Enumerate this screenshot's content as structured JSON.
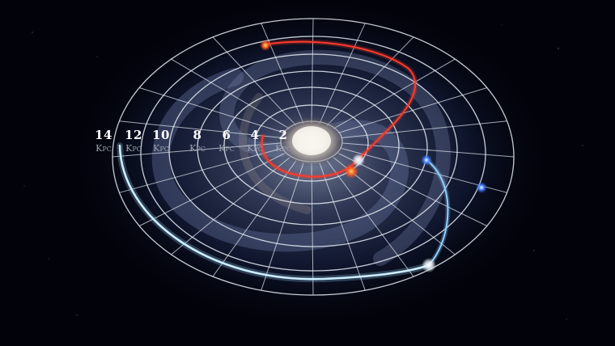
{
  "scale_labels": [
    {
      "value": "14",
      "unit": "Kpc"
    },
    {
      "value": "12",
      "unit": "Kpc"
    },
    {
      "value": "10",
      "unit": "Kpc"
    },
    {
      "value": "8",
      "unit": "Kpc"
    },
    {
      "value": "6",
      "unit": "Kpc"
    },
    {
      "value": "4",
      "unit": "Kpc"
    },
    {
      "value": "2",
      "unit": "Kpc"
    }
  ],
  "colors": {
    "grid": "#e8eef6",
    "red_orbit": "#ff3b2b",
    "blue_orbit": "#8fd0ff",
    "core": "#f4f2ea",
    "background": "#02030a"
  }
}
